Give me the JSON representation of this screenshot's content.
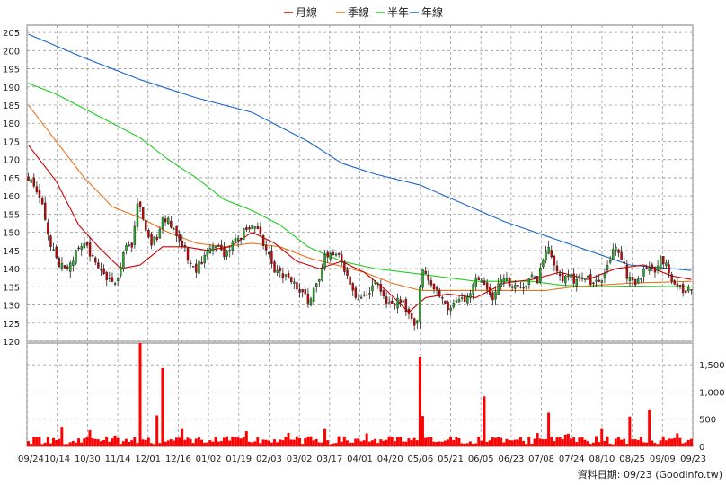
{
  "chart_data": {
    "type": "candlestick",
    "legend": [
      {
        "name": "月線",
        "color": "#cc0000"
      },
      {
        "name": "季線",
        "color": "#e8731a"
      },
      {
        "name": "半年",
        "color": "#22cc22"
      },
      {
        "name": "年線",
        "color": "#1a66cc"
      }
    ],
    "price_axis": {
      "range": [
        120,
        207
      ],
      "ticks": [
        120,
        125,
        130,
        135,
        140,
        145,
        150,
        155,
        160,
        165,
        170,
        175,
        180,
        185,
        190,
        195,
        200,
        205
      ]
    },
    "volume_axis": {
      "range": [
        0,
        1900
      ],
      "ticks": [
        0,
        500,
        1000,
        1500
      ],
      "tick_labels": [
        "0",
        "500",
        "1,000",
        "1,500"
      ]
    },
    "x_tick_labels": [
      "09/24",
      "10/14",
      "10/30",
      "11/14",
      "12/01",
      "12/16",
      "01/02",
      "01/19",
      "02/03",
      "03/02",
      "03/17",
      "04/01",
      "04/20",
      "05/06",
      "05/21",
      "06/05",
      "06/23",
      "07/08",
      "07/24",
      "08/10",
      "08/25",
      "09/09",
      "09/23"
    ],
    "footer": "資料日期: 09/23  (Goodinfo.tw)",
    "grid": true,
    "up_color": "#22aa22",
    "down_color": "#cc0000",
    "volume_color": "#ff0000",
    "close_anchors": [
      [
        0,
        165
      ],
      [
        2,
        163
      ],
      [
        4,
        160
      ],
      [
        6,
        154
      ],
      [
        8,
        147
      ],
      [
        10,
        143
      ],
      [
        11,
        141
      ],
      [
        13,
        140
      ],
      [
        16,
        143
      ],
      [
        18,
        146
      ],
      [
        20,
        147
      ],
      [
        22,
        144
      ],
      [
        24,
        141
      ],
      [
        27,
        138
      ],
      [
        29,
        137
      ],
      [
        31,
        136
      ],
      [
        33,
        141
      ],
      [
        35,
        146
      ],
      [
        37,
        145
      ],
      [
        39,
        158
      ],
      [
        40,
        156
      ],
      [
        42,
        150
      ],
      [
        44,
        147
      ],
      [
        46,
        149
      ],
      [
        48,
        153
      ],
      [
        50,
        154
      ],
      [
        52,
        150
      ],
      [
        54,
        147
      ],
      [
        56,
        145
      ],
      [
        58,
        141
      ],
      [
        60,
        140
      ],
      [
        62,
        142
      ],
      [
        64,
        145
      ],
      [
        66,
        147
      ],
      [
        68,
        146
      ],
      [
        70,
        144
      ],
      [
        72,
        146
      ],
      [
        74,
        148
      ],
      [
        76,
        149
      ],
      [
        78,
        151
      ],
      [
        80,
        152
      ],
      [
        82,
        150
      ],
      [
        84,
        147
      ],
      [
        86,
        143
      ],
      [
        88,
        140
      ],
      [
        90,
        139
      ],
      [
        92,
        138
      ],
      [
        94,
        136
      ],
      [
        96,
        135
      ],
      [
        98,
        134
      ],
      [
        100,
        131
      ],
      [
        102,
        134
      ],
      [
        104,
        138
      ],
      [
        106,
        143
      ],
      [
        108,
        145
      ],
      [
        110,
        144
      ],
      [
        112,
        142
      ],
      [
        114,
        138
      ],
      [
        116,
        134
      ],
      [
        118,
        131
      ],
      [
        120,
        132
      ],
      [
        122,
        133
      ],
      [
        124,
        136
      ],
      [
        126,
        134
      ],
      [
        128,
        131
      ],
      [
        130,
        130
      ],
      [
        132,
        131
      ],
      [
        134,
        130
      ],
      [
        136,
        127
      ],
      [
        138,
        124
      ],
      [
        139,
        126
      ],
      [
        140,
        135
      ],
      [
        141,
        141
      ],
      [
        142,
        139
      ],
      [
        144,
        136
      ],
      [
        146,
        134
      ],
      [
        148,
        131
      ],
      [
        150,
        129
      ],
      [
        152,
        130
      ],
      [
        154,
        131
      ],
      [
        156,
        131
      ],
      [
        158,
        133
      ],
      [
        160,
        138
      ],
      [
        162,
        137
      ],
      [
        164,
        134
      ],
      [
        166,
        131
      ],
      [
        168,
        135
      ],
      [
        170,
        138
      ],
      [
        172,
        136
      ],
      [
        174,
        135
      ],
      [
        176,
        134
      ],
      [
        178,
        136
      ],
      [
        180,
        139
      ],
      [
        182,
        137
      ],
      [
        184,
        143
      ],
      [
        186,
        146
      ],
      [
        188,
        141
      ],
      [
        190,
        138
      ],
      [
        192,
        137
      ],
      [
        194,
        138
      ],
      [
        196,
        136
      ],
      [
        198,
        138
      ],
      [
        200,
        137
      ],
      [
        202,
        136
      ],
      [
        204,
        136
      ],
      [
        206,
        139
      ],
      [
        208,
        143
      ],
      [
        210,
        146
      ],
      [
        212,
        143
      ],
      [
        214,
        138
      ],
      [
        216,
        136
      ],
      [
        218,
        137
      ],
      [
        220,
        140
      ],
      [
        222,
        141
      ],
      [
        224,
        140
      ],
      [
        226,
        143
      ],
      [
        228,
        141
      ],
      [
        230,
        137
      ],
      [
        232,
        135
      ],
      [
        234,
        134
      ],
      [
        236,
        134
      ],
      [
        237,
        135
      ]
    ],
    "volume_spikes": [
      [
        12,
        360
      ],
      [
        22,
        300
      ],
      [
        31,
        200
      ],
      [
        40,
        1900
      ],
      [
        46,
        570
      ],
      [
        48,
        1440
      ],
      [
        55,
        320
      ],
      [
        78,
        280
      ],
      [
        93,
        250
      ],
      [
        106,
        320
      ],
      [
        121,
        240
      ],
      [
        140,
        1640
      ],
      [
        141,
        560
      ],
      [
        163,
        920
      ],
      [
        186,
        620
      ],
      [
        205,
        320
      ],
      [
        215,
        550
      ],
      [
        222,
        680
      ],
      [
        232,
        240
      ]
    ],
    "ma_paths": {
      "year": [
        [
          0,
          204.5
        ],
        [
          20,
          198
        ],
        [
          40,
          192
        ],
        [
          60,
          187
        ],
        [
          80,
          183
        ],
        [
          100,
          175
        ],
        [
          112,
          169
        ],
        [
          124,
          166
        ],
        [
          140,
          163
        ],
        [
          155,
          158
        ],
        [
          170,
          153
        ],
        [
          185,
          149
        ],
        [
          200,
          145
        ],
        [
          215,
          141
        ],
        [
          237,
          139.5
        ]
      ],
      "halfyear": [
        [
          0,
          191
        ],
        [
          10,
          188
        ],
        [
          20,
          184
        ],
        [
          30,
          180
        ],
        [
          40,
          176
        ],
        [
          50,
          170
        ],
        [
          60,
          165
        ],
        [
          70,
          159
        ],
        [
          80,
          156
        ],
        [
          90,
          152
        ],
        [
          100,
          146
        ],
        [
          112,
          142
        ],
        [
          124,
          140
        ],
        [
          140,
          138.5
        ],
        [
          160,
          136.5
        ],
        [
          180,
          136.5
        ],
        [
          190,
          135.5
        ],
        [
          200,
          135
        ],
        [
          215,
          135.2
        ],
        [
          237,
          135
        ]
      ],
      "quarter": [
        [
          0,
          185
        ],
        [
          10,
          175
        ],
        [
          20,
          165
        ],
        [
          30,
          157
        ],
        [
          40,
          154
        ],
        [
          50,
          150
        ],
        [
          60,
          147
        ],
        [
          70,
          146
        ],
        [
          80,
          147
        ],
        [
          90,
          146
        ],
        [
          100,
          143
        ],
        [
          110,
          141
        ],
        [
          120,
          139
        ],
        [
          130,
          136
        ],
        [
          140,
          134
        ],
        [
          155,
          134
        ],
        [
          170,
          134
        ],
        [
          185,
          134
        ],
        [
          195,
          135
        ],
        [
          215,
          136
        ],
        [
          237,
          136.5
        ]
      ],
      "month": [
        [
          0,
          174
        ],
        [
          10,
          164
        ],
        [
          18,
          152
        ],
        [
          25,
          146
        ],
        [
          33,
          140
        ],
        [
          40,
          141
        ],
        [
          48,
          146
        ],
        [
          56,
          146
        ],
        [
          64,
          145
        ],
        [
          72,
          146
        ],
        [
          80,
          150
        ],
        [
          88,
          147
        ],
        [
          96,
          142
        ],
        [
          104,
          140
        ],
        [
          112,
          142
        ],
        [
          120,
          139
        ],
        [
          128,
          134
        ],
        [
          136,
          128
        ],
        [
          142,
          132
        ],
        [
          150,
          133
        ],
        [
          160,
          132
        ],
        [
          170,
          136
        ],
        [
          180,
          137
        ],
        [
          190,
          139
        ],
        [
          200,
          137
        ],
        [
          210,
          140
        ],
        [
          220,
          141
        ],
        [
          230,
          138
        ],
        [
          237,
          137
        ]
      ]
    }
  }
}
